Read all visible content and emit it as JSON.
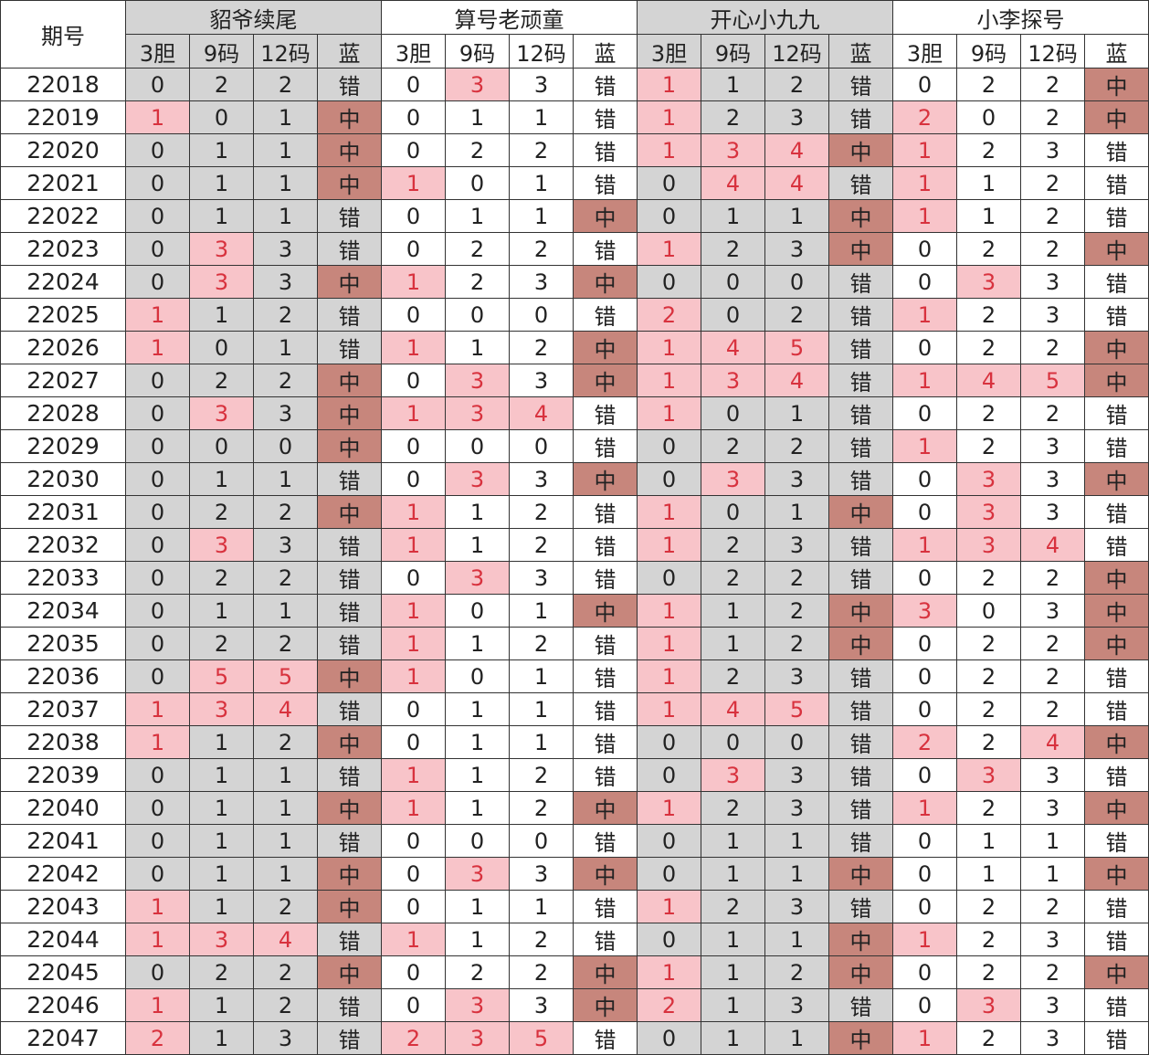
{
  "header": {
    "period_label": "期号"
  },
  "groups": [
    {
      "name": "貂爷续尾",
      "columns": [
        "3胆",
        "9码",
        "12码",
        "蓝"
      ]
    },
    {
      "name": "算号老顽童",
      "columns": [
        "3胆",
        "9码",
        "12码",
        "蓝"
      ]
    },
    {
      "name": "开心小九九",
      "columns": [
        "3胆",
        "9码",
        "12码",
        "蓝"
      ]
    },
    {
      "name": "小李探号",
      "columns": [
        "3胆",
        "9码",
        "12码",
        "蓝"
      ]
    }
  ],
  "rows": [
    [
      "22018",
      0,
      2,
      2,
      "错",
      0,
      3,
      3,
      "错",
      1,
      1,
      2,
      "错",
      0,
      2,
      2,
      "中"
    ],
    [
      "22019",
      1,
      0,
      1,
      "中",
      0,
      1,
      1,
      "错",
      1,
      2,
      3,
      "错",
      2,
      0,
      2,
      "中"
    ],
    [
      "22020",
      0,
      1,
      1,
      "中",
      0,
      2,
      2,
      "错",
      1,
      3,
      4,
      "中",
      1,
      2,
      3,
      "错"
    ],
    [
      "22021",
      0,
      1,
      1,
      "中",
      1,
      0,
      1,
      "错",
      0,
      4,
      4,
      "错",
      1,
      1,
      2,
      "错"
    ],
    [
      "22022",
      0,
      1,
      1,
      "错",
      0,
      1,
      1,
      "中",
      0,
      1,
      1,
      "中",
      1,
      1,
      2,
      "错"
    ],
    [
      "22023",
      0,
      3,
      3,
      "错",
      0,
      2,
      2,
      "错",
      1,
      2,
      3,
      "中",
      0,
      2,
      2,
      "中"
    ],
    [
      "22024",
      0,
      3,
      3,
      "中",
      1,
      2,
      3,
      "中",
      0,
      0,
      0,
      "错",
      0,
      3,
      3,
      "错"
    ],
    [
      "22025",
      1,
      1,
      2,
      "错",
      0,
      0,
      0,
      "错",
      2,
      0,
      2,
      "错",
      1,
      2,
      3,
      "错"
    ],
    [
      "22026",
      1,
      0,
      1,
      "错",
      1,
      1,
      2,
      "中",
      1,
      4,
      5,
      "错",
      0,
      2,
      2,
      "中"
    ],
    [
      "22027",
      0,
      2,
      2,
      "中",
      0,
      3,
      3,
      "中",
      1,
      3,
      4,
      "错",
      1,
      4,
      5,
      "中"
    ],
    [
      "22028",
      0,
      3,
      3,
      "中",
      1,
      3,
      4,
      "错",
      1,
      0,
      1,
      "错",
      0,
      2,
      2,
      "错"
    ],
    [
      "22029",
      0,
      0,
      0,
      "中",
      0,
      0,
      0,
      "错",
      0,
      2,
      2,
      "错",
      1,
      2,
      3,
      "错"
    ],
    [
      "22030",
      0,
      1,
      1,
      "错",
      0,
      3,
      3,
      "中",
      0,
      3,
      3,
      "错",
      0,
      3,
      3,
      "中"
    ],
    [
      "22031",
      0,
      2,
      2,
      "中",
      1,
      1,
      2,
      "错",
      1,
      0,
      1,
      "中",
      0,
      3,
      3,
      "错"
    ],
    [
      "22032",
      0,
      3,
      3,
      "错",
      1,
      1,
      2,
      "错",
      1,
      2,
      3,
      "错",
      1,
      3,
      4,
      "错"
    ],
    [
      "22033",
      0,
      2,
      2,
      "错",
      0,
      3,
      3,
      "错",
      0,
      2,
      2,
      "错",
      0,
      2,
      2,
      "中"
    ],
    [
      "22034",
      0,
      1,
      1,
      "错",
      1,
      0,
      1,
      "中",
      1,
      1,
      2,
      "中",
      3,
      0,
      3,
      "中"
    ],
    [
      "22035",
      0,
      2,
      2,
      "错",
      1,
      1,
      2,
      "错",
      1,
      1,
      2,
      "中",
      0,
      2,
      2,
      "中"
    ],
    [
      "22036",
      0,
      5,
      5,
      "中",
      1,
      0,
      1,
      "错",
      1,
      2,
      3,
      "错",
      0,
      2,
      2,
      "错"
    ],
    [
      "22037",
      1,
      3,
      4,
      "错",
      0,
      1,
      1,
      "错",
      1,
      4,
      5,
      "错",
      0,
      2,
      2,
      "错"
    ],
    [
      "22038",
      1,
      1,
      2,
      "中",
      0,
      1,
      1,
      "错",
      0,
      0,
      0,
      "错",
      2,
      2,
      4,
      "中"
    ],
    [
      "22039",
      0,
      1,
      1,
      "错",
      1,
      1,
      2,
      "错",
      0,
      3,
      3,
      "错",
      0,
      3,
      3,
      "错"
    ],
    [
      "22040",
      0,
      1,
      1,
      "中",
      1,
      1,
      2,
      "中",
      1,
      2,
      3,
      "错",
      1,
      2,
      3,
      "中"
    ],
    [
      "22041",
      0,
      1,
      1,
      "错",
      0,
      0,
      0,
      "错",
      0,
      1,
      1,
      "错",
      0,
      1,
      1,
      "错"
    ],
    [
      "22042",
      0,
      1,
      1,
      "中",
      0,
      3,
      3,
      "中",
      0,
      1,
      1,
      "中",
      0,
      1,
      1,
      "中"
    ],
    [
      "22043",
      1,
      1,
      2,
      "中",
      0,
      1,
      1,
      "错",
      1,
      2,
      3,
      "错",
      0,
      2,
      2,
      "错"
    ],
    [
      "22044",
      1,
      3,
      4,
      "错",
      1,
      1,
      2,
      "错",
      0,
      1,
      1,
      "中",
      1,
      2,
      3,
      "错"
    ],
    [
      "22045",
      0,
      2,
      2,
      "中",
      0,
      2,
      2,
      "中",
      1,
      1,
      2,
      "中",
      0,
      2,
      2,
      "中"
    ],
    [
      "22046",
      1,
      1,
      2,
      "错",
      0,
      3,
      3,
      "中",
      2,
      1,
      3,
      "错",
      0,
      3,
      3,
      "错"
    ],
    [
      "22047",
      2,
      1,
      3,
      "错",
      2,
      3,
      5,
      "错",
      0,
      1,
      1,
      "中",
      1,
      2,
      3,
      "错"
    ]
  ]
}
